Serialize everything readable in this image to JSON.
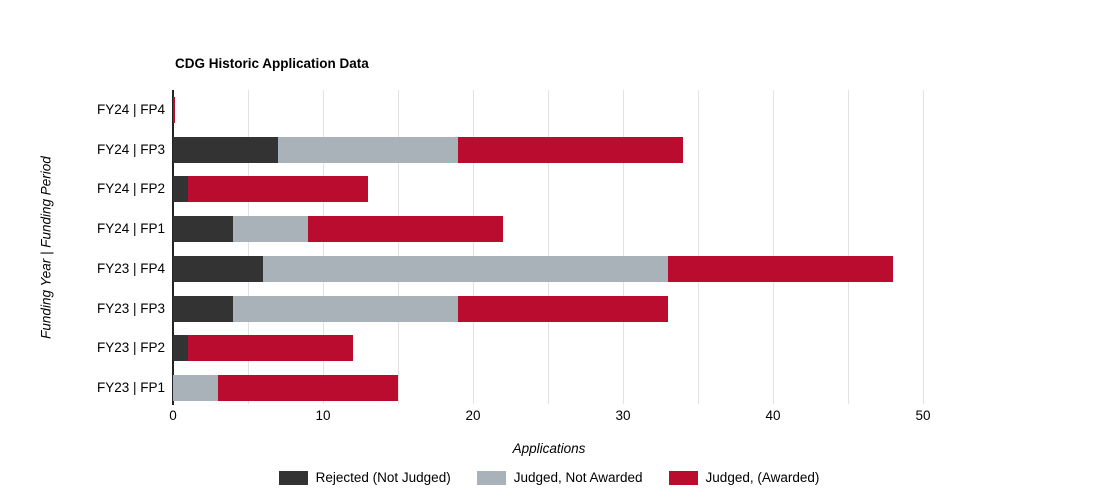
{
  "title": "CDG Historic Application Data",
  "chart_data": {
    "type": "bar",
    "orientation": "horizontal",
    "stacked": true,
    "title": "CDG Historic Application Data",
    "xlabel": "Applications",
    "ylabel": "Funding Year | Funding Period",
    "xlim": [
      0,
      53
    ],
    "xticks": [
      0,
      10,
      20,
      30,
      40,
      50
    ],
    "gridlines": [
      5,
      10,
      15,
      20,
      25,
      30,
      35,
      40,
      45,
      50
    ],
    "grid": true,
    "legend_position": "bottom",
    "categories": [
      "FY24 | FP4",
      "FY24 | FP3",
      "FY24 | FP2",
      "FY24 | FP1",
      "FY23 | FP4",
      "FY23 | FP3",
      "FY23 | FP2",
      "FY23 | FP1"
    ],
    "series": [
      {
        "name": "Rejected (Not Judged)",
        "color": "#333333",
        "values": [
          0,
          7,
          1,
          4,
          6,
          4,
          1,
          0
        ]
      },
      {
        "name": "Judged, Not Awarded",
        "color": "#aab2b9",
        "values": [
          0,
          12,
          0,
          5,
          27,
          15,
          0,
          3
        ]
      },
      {
        "name": "Judged, (Awarded)",
        "color": "#ba0c2f",
        "values": [
          0.1,
          15,
          12,
          13,
          15,
          14,
          11,
          12
        ]
      }
    ],
    "totals": [
      0,
      34,
      13,
      22,
      48,
      33,
      12,
      15
    ]
  },
  "colors": {
    "rejected": "#333333",
    "judged_not_awarded": "#aab2b9",
    "judged_awarded": "#ba0c2f",
    "gridline": "#e2e2e2",
    "axis_line": "#222222",
    "text": "#000000",
    "background": "#ffffff"
  }
}
